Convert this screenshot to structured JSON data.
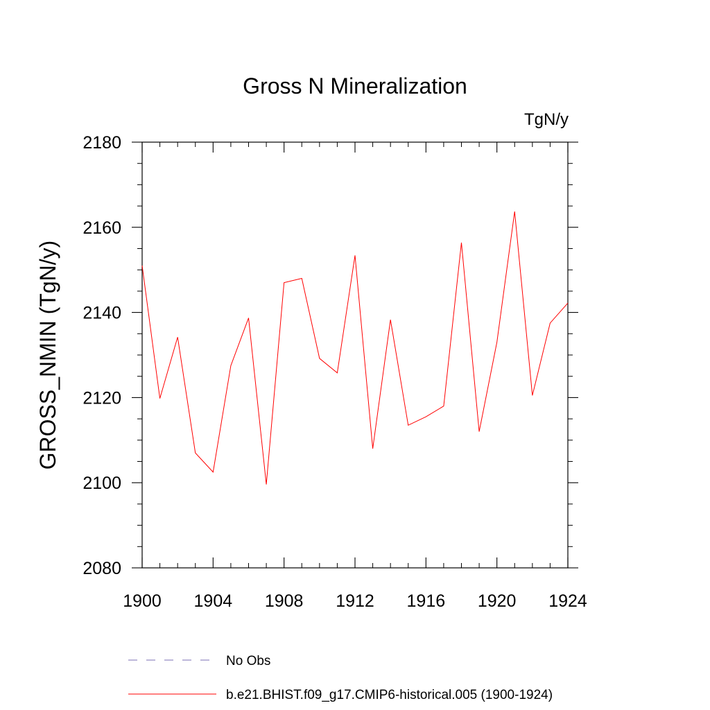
{
  "chart_data": {
    "type": "line",
    "title": "Gross N Mineralization",
    "units_label": "TgN/y",
    "ylabel": "GROSS_NMIN  (TgN/y)",
    "xlabel": "",
    "xlim": [
      1900,
      1924
    ],
    "ylim": [
      2080,
      2180
    ],
    "x_major_ticks": [
      1900,
      1904,
      1908,
      1912,
      1916,
      1920,
      1924
    ],
    "x_minor_step": 1,
    "y_major_ticks": [
      2080,
      2100,
      2120,
      2140,
      2160,
      2180
    ],
    "y_minor_step": 5,
    "grid": false,
    "legend_position": "bottom",
    "colors": {
      "model": "#ff0000",
      "obs": "#7b6fb5",
      "axes": "#000000"
    },
    "series": [
      {
        "name": "No Obs",
        "style": "dashed",
        "x": [],
        "values": []
      },
      {
        "name": "b.e21.BHIST.f09_g17.CMIP6-historical.005 (1900-1924)",
        "style": "solid",
        "x": [
          1900,
          1901,
          1902,
          1903,
          1904,
          1905,
          1906,
          1907,
          1908,
          1909,
          1910,
          1911,
          1912,
          1913,
          1914,
          1915,
          1916,
          1917,
          1918,
          1919,
          1920,
          1921,
          1922,
          1923,
          1924
        ],
        "values": [
          2151,
          2119.8,
          2134.2,
          2107,
          2102.5,
          2127.5,
          2138.7,
          2099.6,
          2147,
          2148,
          2129.2,
          2125.8,
          2153.4,
          2108,
          2138.3,
          2113.5,
          2115.5,
          2118,
          2156.4,
          2112,
          2133,
          2163.7,
          2120.5,
          2137.5,
          2142.2
        ]
      }
    ]
  }
}
